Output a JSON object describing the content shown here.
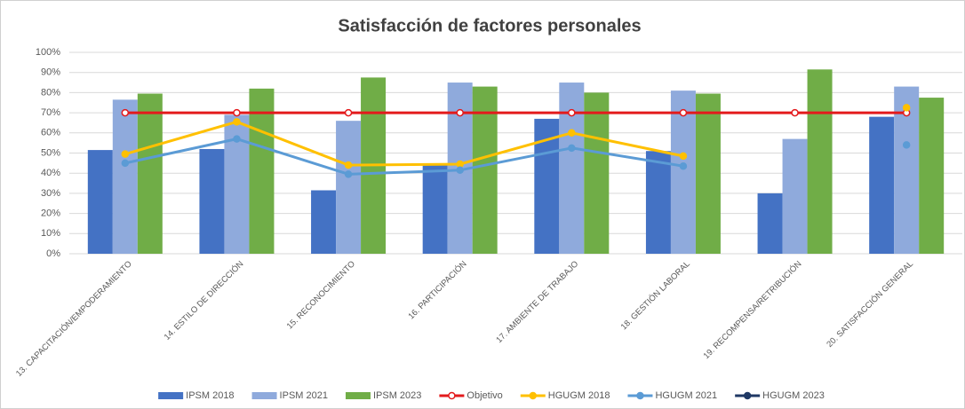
{
  "chart_data": {
    "type": "bar",
    "title": "Satisfacción de factores personales",
    "categories": [
      "13. CAPACITACIÓN/EMPODERAMIENTO",
      "14. ESTILO DE DIRECCIÓN",
      "15. RECONOCIMIENTO",
      "16. PARTICIPACIÓN",
      "17. AMBIENTE DE TRABAJO",
      "18. GESTIÓN LABORAL",
      "19. RECOMPENSA/RETRIBUCIÓN",
      "20. SATISFACCIÓN GENERAL"
    ],
    "series": [
      {
        "name": "IPSM 2018",
        "type": "bar",
        "color": "#4472c4",
        "values": [
          51.5,
          52,
          31.5,
          44,
          67,
          51,
          30,
          68
        ]
      },
      {
        "name": "IPSM 2021",
        "type": "bar",
        "color": "#8faadc",
        "values": [
          76.5,
          69,
          66,
          85,
          85,
          81,
          57,
          83
        ]
      },
      {
        "name": "IPSM 2023",
        "type": "bar",
        "color": "#70ad47",
        "values": [
          79.5,
          82,
          87.5,
          83,
          80,
          79.5,
          91.5,
          77.5
        ]
      },
      {
        "name": "Objetivo",
        "type": "line",
        "color": "#e31a1c",
        "marker_fill": "#ffffff",
        "values": [
          70,
          70,
          70,
          70,
          70,
          70,
          70,
          70
        ]
      },
      {
        "name": "HGUGM 2018",
        "type": "line",
        "color": "#ffc000",
        "values": [
          49.5,
          65.5,
          44,
          44.5,
          60,
          48.5,
          null,
          72.5
        ]
      },
      {
        "name": "HGUGM 2021",
        "type": "line",
        "color": "#5b9bd5",
        "values": [
          45,
          57,
          39.5,
          41.5,
          52.5,
          43.5,
          null,
          54
        ]
      },
      {
        "name": "HGUGM 2023",
        "type": "line",
        "color": "#1f3864",
        "values": [
          null,
          null,
          null,
          null,
          null,
          null,
          null,
          null
        ]
      }
    ],
    "ylim": [
      0,
      100
    ],
    "yticks": [
      {
        "value": 0,
        "label": "0%"
      },
      {
        "value": 10,
        "label": "10%"
      },
      {
        "value": 20,
        "label": "20%"
      },
      {
        "value": 30,
        "label": "30%"
      },
      {
        "value": 40,
        "label": "40%"
      },
      {
        "value": 50,
        "label": "50%"
      },
      {
        "value": 60,
        "label": "60%"
      },
      {
        "value": 70,
        "label": "70%"
      },
      {
        "value": 80,
        "label": "80%"
      },
      {
        "value": 90,
        "label": "90%"
      },
      {
        "value": 100,
        "label": "100%"
      }
    ],
    "grid": true,
    "legend": "bottom"
  }
}
